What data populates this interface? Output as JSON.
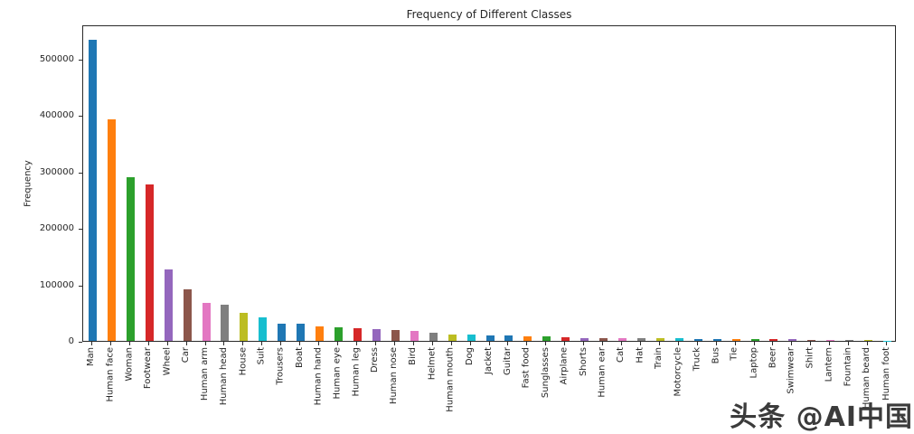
{
  "watermark": {
    "text": "头条 @AI中国"
  },
  "chart_data": {
    "type": "bar",
    "title": "Frequency of Different Classes",
    "xlabel": "",
    "ylabel": "Frequency",
    "ylim": [
      0,
      560000
    ],
    "yticks": [
      0,
      100000,
      200000,
      300000,
      400000,
      500000
    ],
    "grid": false,
    "legend": "none",
    "categories": [
      "Man",
      "Human face",
      "Woman",
      "Footwear",
      "Wheel",
      "Car",
      "Human arm",
      "Human head",
      "House",
      "Suit",
      "Trousers",
      "Boat",
      "Human hand",
      "Human eye",
      "Human leg",
      "Dress",
      "Human nose",
      "Bird",
      "Helmet",
      "Human mouth",
      "Dog",
      "Jacket",
      "Guitar",
      "Fast food",
      "Sunglasses",
      "Airplane",
      "Shorts",
      "Human ear",
      "Cat",
      "Hat",
      "Train",
      "Motorcycle",
      "Truck",
      "Bus",
      "Tie",
      "Laptop",
      "Beer",
      "Swimwear",
      "Shirt",
      "Lantern",
      "Fountain",
      "Human beard",
      "Human foot"
    ],
    "values": [
      533000,
      392000,
      289000,
      277000,
      126000,
      92000,
      67000,
      64000,
      50000,
      41000,
      31000,
      30000,
      25000,
      24000,
      22000,
      20500,
      19000,
      17000,
      14000,
      12000,
      11000,
      9500,
      9200,
      8500,
      7500,
      6500,
      5600,
      5300,
      4900,
      4500,
      4300,
      4100,
      3900,
      3700,
      3400,
      3100,
      2900,
      2600,
      2400,
      2100,
      1300,
      1000,
      800
    ],
    "bar_colors": [
      "#1f77b4",
      "#ff7f0e",
      "#2ca02c",
      "#d62728",
      "#9467bd",
      "#8c564b",
      "#e377c2",
      "#7f7f7f",
      "#bcbd22",
      "#17becf",
      "#1f77b4",
      "#1f77b4",
      "#ff7f0e",
      "#2ca02c",
      "#d62728",
      "#9467bd",
      "#8c564b",
      "#e377c2",
      "#7f7f7f",
      "#bcbd22",
      "#17becf",
      "#1f77b4",
      "#1f77b4",
      "#ff7f0e",
      "#2ca02c",
      "#d62728",
      "#9467bd",
      "#8c564b",
      "#e377c2",
      "#7f7f7f",
      "#bcbd22",
      "#17becf",
      "#1f77b4",
      "#1f77b4",
      "#ff7f0e",
      "#2ca02c",
      "#d62728",
      "#9467bd",
      "#8c564b",
      "#e377c2",
      "#7f7f7f",
      "#bcbd22",
      "#17becf"
    ]
  },
  "colors": {
    "spine": "#2a2a2a",
    "text": "#262626",
    "watermark": "#3b3b3b",
    "background": "#ffffff"
  }
}
